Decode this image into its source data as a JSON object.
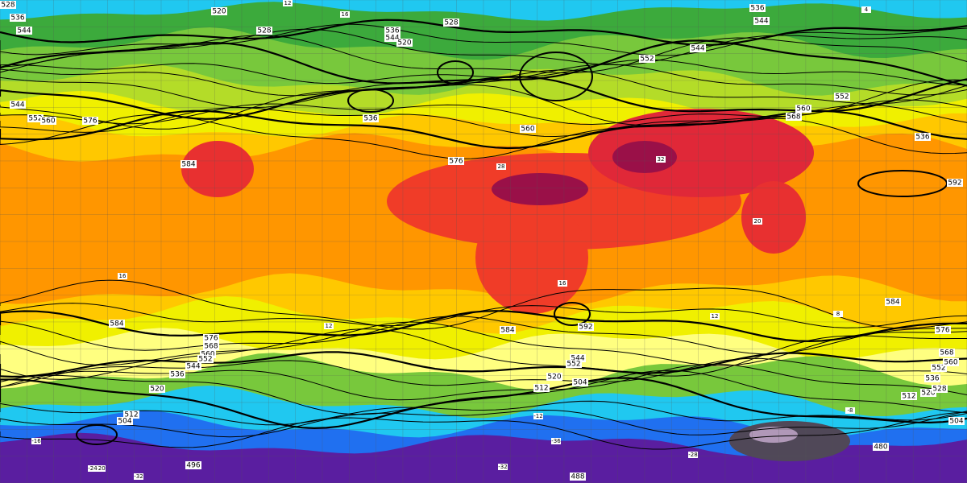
{
  "height_labels": [
    "528",
    "536",
    "544",
    "520",
    "528",
    "536",
    "544",
    "520",
    "528",
    "536",
    "544",
    "552",
    "544",
    "552",
    "560",
    "568",
    "536",
    "544",
    "552",
    "560",
    "576",
    "536",
    "560",
    "576",
    "584",
    "592",
    "584",
    "584",
    "592",
    "584",
    "576",
    "576",
    "568",
    "560",
    "552",
    "544",
    "536",
    "520",
    "512",
    "504",
    "496",
    "488",
    "480",
    "504",
    "520",
    "512",
    "544",
    "552",
    "504",
    "512",
    "520",
    "528",
    "536",
    "552",
    "560",
    "568"
  ],
  "temperature_labels": [
    "12",
    "16",
    "16",
    "12",
    "16",
    "12",
    "8",
    "20",
    "28",
    "32",
    "4",
    "-8",
    "-12",
    "-16",
    "-20",
    "-24",
    "-32",
    "-28",
    "-36",
    "-32"
  ]
}
